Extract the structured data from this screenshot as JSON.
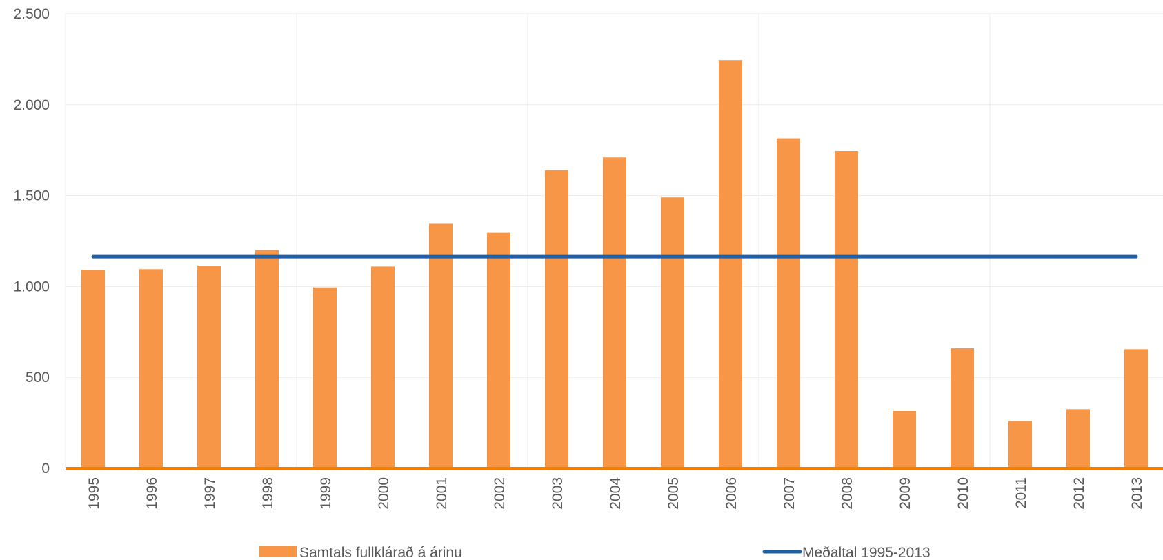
{
  "chart_data": {
    "type": "bar",
    "title": "",
    "xlabel": "",
    "ylabel": "",
    "ylim": [
      0,
      2500
    ],
    "yticks": [
      0,
      500,
      1000,
      1500,
      2000,
      2500
    ],
    "ytick_labels": [
      "0",
      "500",
      "1.000",
      "1.500",
      "2.000",
      "2.500"
    ],
    "categories": [
      "1995",
      "1996",
      "1997",
      "1998",
      "1999",
      "2000",
      "2001",
      "2002",
      "2003",
      "2004",
      "2005",
      "2006",
      "2007",
      "2008",
      "2009",
      "2010",
      "2011",
      "2012",
      "2013"
    ],
    "series": [
      {
        "name": "Samtals fullklárað á árinu",
        "type": "bar",
        "color": "#F79646",
        "values": [
          1090,
          1095,
          1115,
          1200,
          995,
          1110,
          1345,
          1295,
          1640,
          1710,
          1490,
          2245,
          1815,
          1745,
          315,
          660,
          260,
          325,
          655
        ]
      },
      {
        "name": "Meðaltal 1995-2013",
        "type": "line",
        "color": "#1F5FA6",
        "values": [
          1164,
          1164,
          1164,
          1164,
          1164,
          1164,
          1164,
          1164,
          1164,
          1164,
          1164,
          1164,
          1164,
          1164,
          1164,
          1164,
          1164,
          1164,
          1164
        ]
      }
    ],
    "axis_color": "#F08000",
    "grid": true,
    "legend_position": "bottom"
  }
}
